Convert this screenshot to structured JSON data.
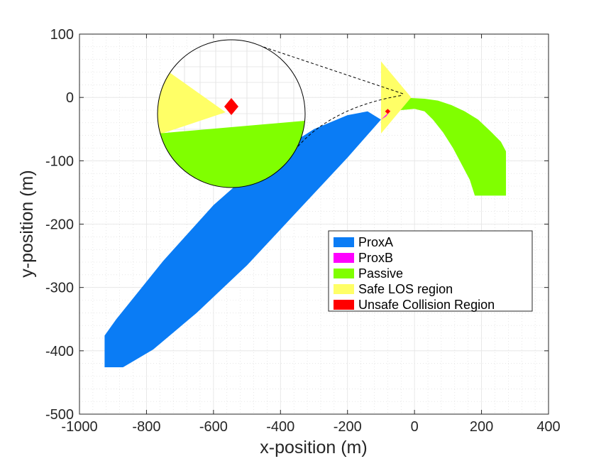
{
  "chart_data": {
    "type": "area",
    "xlabel": "x-position (m)",
    "ylabel": "y-position (m)",
    "xlim": [
      -1000,
      400
    ],
    "ylim": [
      -500,
      100
    ],
    "xticks": [
      -1000,
      -800,
      -600,
      -400,
      -200,
      0,
      200,
      400
    ],
    "yticks": [
      100,
      0,
      -100,
      -200,
      -300,
      -400,
      -500
    ],
    "xtick_labels": [
      "-1000",
      "-800",
      "-600",
      "-400",
      "-200",
      "0",
      "200",
      "400"
    ],
    "ytick_labels": [
      "100",
      "0",
      "-100",
      "-200",
      "-300",
      "-400",
      "-500"
    ],
    "grid": true,
    "minor_grid": true,
    "legend_position": "lower-right",
    "series": [
      {
        "name": "ProxA",
        "color": "#0a7cf5",
        "polygon": [
          [
            -925,
            -376
          ],
          [
            -890,
            -350
          ],
          [
            -750,
            -258
          ],
          [
            -600,
            -170
          ],
          [
            -450,
            -100
          ],
          [
            -300,
            -50
          ],
          [
            -200,
            -28
          ],
          [
            -140,
            -22
          ],
          [
            -100,
            -35
          ],
          [
            -200,
            -95
          ],
          [
            -350,
            -180
          ],
          [
            -500,
            -265
          ],
          [
            -650,
            -340
          ],
          [
            -780,
            -398
          ],
          [
            -870,
            -426
          ],
          [
            -925,
            -426
          ]
        ]
      },
      {
        "name": "ProxB",
        "color": "#ff00ff",
        "polygon": [
          [
            -100,
            -35
          ],
          [
            -80,
            -25
          ],
          [
            -70,
            -20
          ],
          [
            -85,
            -30
          ]
        ]
      },
      {
        "name": "Passive",
        "color": "#80ff00",
        "polygon": [
          [
            -70,
            -20
          ],
          [
            -40,
            -5
          ],
          [
            -10,
            -1
          ],
          [
            30,
            -2
          ],
          [
            70,
            -5
          ],
          [
            110,
            -12
          ],
          [
            150,
            -22
          ],
          [
            190,
            -35
          ],
          [
            230,
            -55
          ],
          [
            258,
            -70
          ],
          [
            273,
            -85
          ],
          [
            273,
            -155
          ],
          [
            234,
            -155
          ],
          [
            180,
            -155
          ],
          [
            165,
            -130
          ],
          [
            140,
            -105
          ],
          [
            115,
            -80
          ],
          [
            85,
            -55
          ],
          [
            55,
            -35
          ],
          [
            30,
            -22
          ],
          [
            0,
            -18
          ],
          [
            -40,
            -20
          ]
        ]
      },
      {
        "name": "Safe LOS region",
        "color": "#ffff66",
        "polygon": [
          [
            -100,
            57
          ],
          [
            -10,
            0
          ],
          [
            -100,
            -57
          ]
        ]
      },
      {
        "name": "Unsafe Collision Region",
        "color": "#ff0000",
        "polygon": [
          [
            -88,
            -22
          ],
          [
            -80,
            -18
          ],
          [
            -72,
            -22
          ],
          [
            -80,
            -26
          ]
        ]
      }
    ],
    "inset": {
      "type": "magnified view",
      "connector_style": "dashed"
    }
  }
}
